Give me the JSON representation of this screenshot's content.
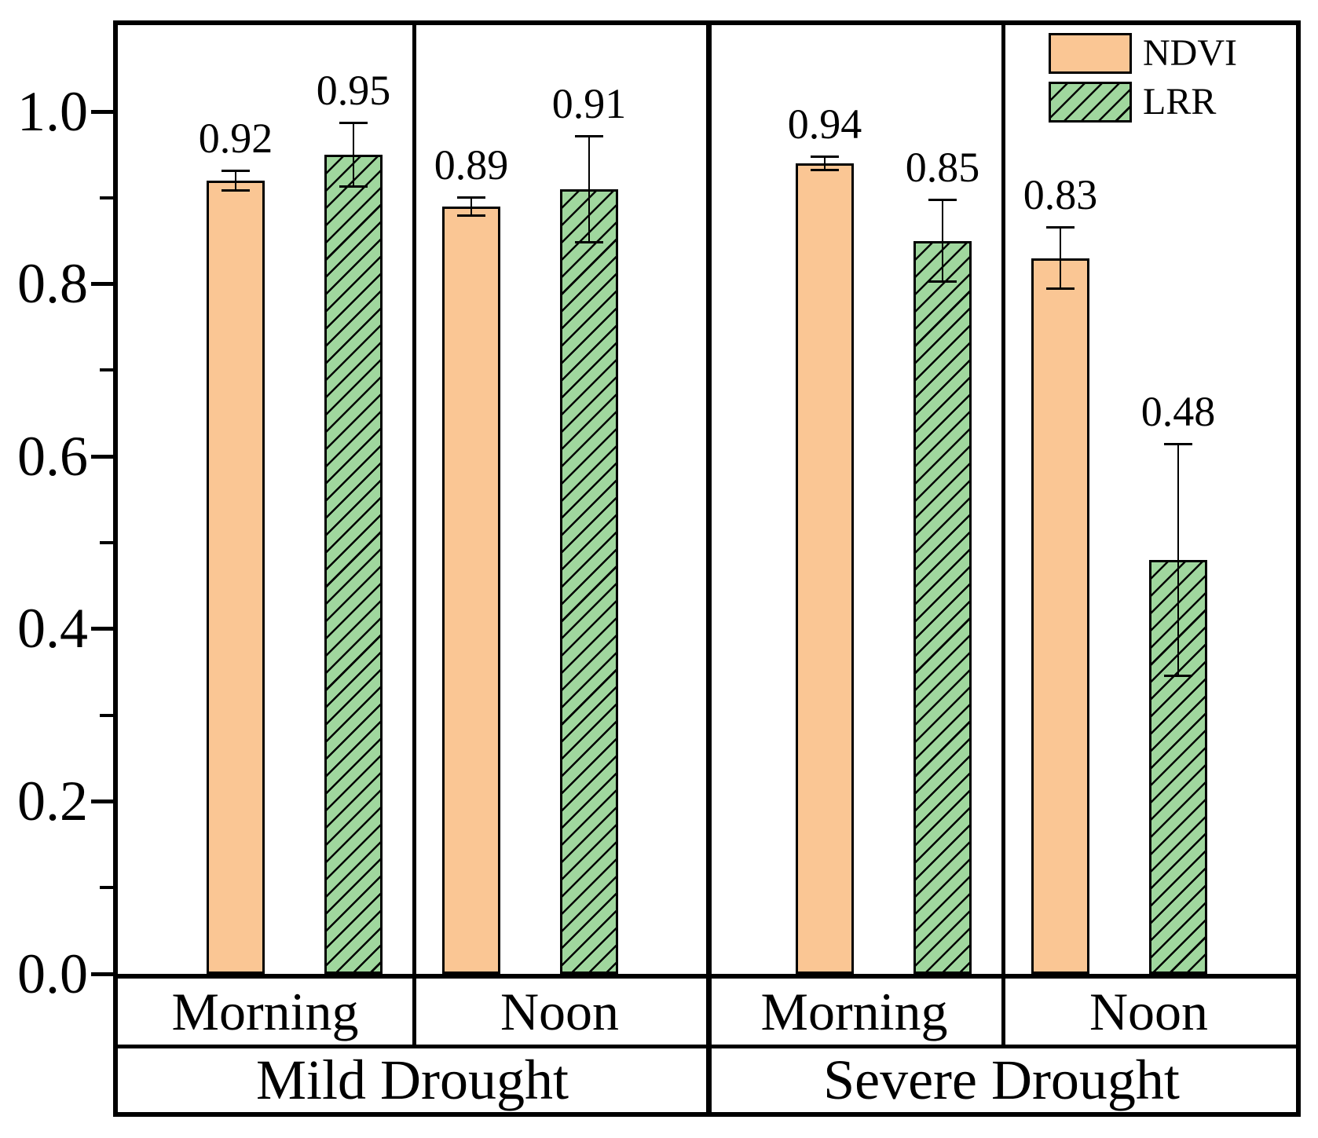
{
  "figure": {
    "description": "Grouped bar chart with error bars comparing NDVI and LRR under drought conditions",
    "background": "#ffffff",
    "frame_color": "#000000"
  },
  "chart_data": {
    "type": "bar",
    "title": "",
    "xlabel": "",
    "ylabel": "",
    "ylim": [
      0,
      1.1
    ],
    "grid": false,
    "legend_position": "top-right-inside",
    "ytick_values": [
      0.0,
      0.2,
      0.4,
      0.6,
      0.8,
      1.0
    ],
    "ytick_labels": [
      "0.0",
      "0.2",
      "0.4",
      "0.6",
      "0.8",
      "1.0"
    ],
    "ytick_minor_values": [
      0.1,
      0.3,
      0.5,
      0.7,
      0.9
    ],
    "groups": [
      {
        "label": "Mild Drought",
        "subgroups": [
          "Morning",
          "Noon"
        ]
      },
      {
        "label": "Severe Drought",
        "subgroups": [
          "Morning",
          "Noon"
        ]
      }
    ],
    "categories": [
      "Mild Drought - Morning",
      "Mild Drought - Noon",
      "Severe Drought - Morning",
      "Severe Drought - Noon"
    ],
    "series": [
      {
        "name": "NDVI",
        "color": "#FAC694",
        "border_color": "#000000",
        "hatch": "none",
        "values": [
          0.92,
          0.89,
          0.94,
          0.83
        ],
        "errors": [
          0.012,
          0.011,
          0.008,
          0.036
        ],
        "value_labels": [
          "0.92",
          "0.89",
          "0.94",
          "0.83"
        ]
      },
      {
        "name": "LRR",
        "color": "#A0D79E",
        "border_color": "#000000",
        "hatch": "diagonal-forward",
        "values": [
          0.95,
          0.91,
          0.85,
          0.48
        ],
        "errors": [
          0.037,
          0.062,
          0.048,
          0.135
        ],
        "value_labels": [
          "0.95",
          "0.91",
          "0.85",
          "0.48"
        ]
      }
    ]
  }
}
